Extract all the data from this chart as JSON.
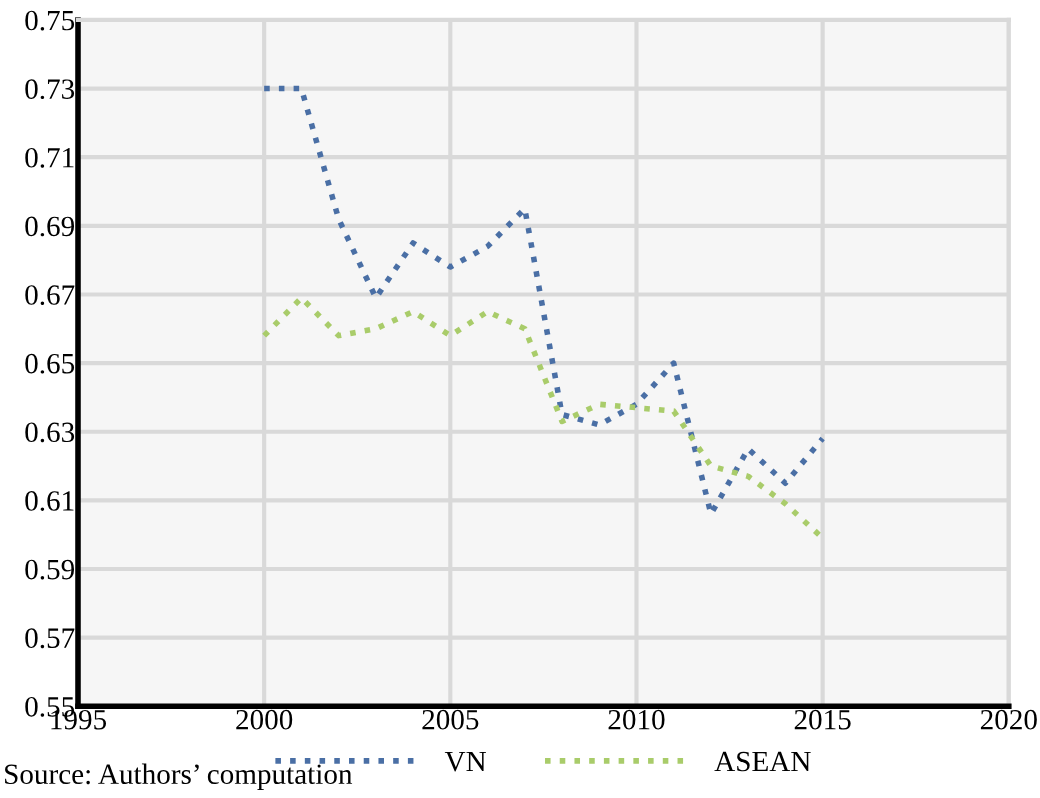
{
  "chart_data": {
    "type": "line",
    "x": [
      2000,
      2001,
      2002,
      2003,
      2004,
      2005,
      2006,
      2007,
      2008,
      2009,
      2010,
      2011,
      2012,
      2013,
      2014,
      2015
    ],
    "series": [
      {
        "name": "VN",
        "color": "#4a6fa5",
        "values": [
          0.73,
          0.73,
          0.692,
          0.669,
          0.685,
          0.678,
          0.684,
          0.695,
          0.635,
          0.632,
          0.638,
          0.65,
          0.606,
          0.625,
          0.615,
          0.628
        ]
      },
      {
        "name": "ASEAN",
        "color": "#a9cc6a",
        "values": [
          0.658,
          0.669,
          0.658,
          0.66,
          0.665,
          0.658,
          0.665,
          0.66,
          0.633,
          0.638,
          0.637,
          0.636,
          0.62,
          0.617,
          0.609,
          0.599
        ]
      }
    ],
    "xlim": [
      1995,
      2020
    ],
    "xticks": [
      1995,
      2000,
      2005,
      2010,
      2015,
      2020
    ],
    "ylim": [
      0.55,
      0.75
    ],
    "yticks": [
      {
        "value": 0.55,
        "label": "0.55"
      },
      {
        "value": 0.57,
        "label": "0.57"
      },
      {
        "value": 0.59,
        "label": "0.59"
      },
      {
        "value": 0.61,
        "label": "0.61"
      },
      {
        "value": 0.63,
        "label": "0.63"
      },
      {
        "value": 0.65,
        "label": "0.65"
      },
      {
        "value": 0.67,
        "label": "0.67"
      },
      {
        "value": 0.69,
        "label": "0.69"
      },
      {
        "value": 0.71,
        "label": "0.71"
      },
      {
        "value": 0.73,
        "label": "0.73"
      },
      {
        "value": 0.75,
        "label": "0.75"
      }
    ],
    "grid": true,
    "legend": "bottom",
    "line_style": "dotted",
    "marker": "none",
    "annotations": [
      "Source: Authors’ computation"
    ]
  }
}
